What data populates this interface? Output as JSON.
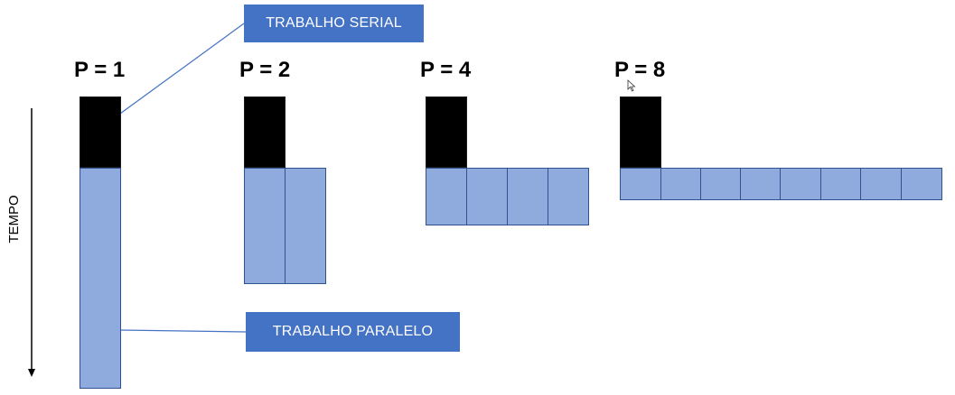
{
  "callouts": {
    "serial_label": "TRABALHO SERIAL",
    "parallel_label": "TRABALHO PARALELO"
  },
  "axis": {
    "time_label": "TEMPO"
  },
  "configs": [
    {
      "label": "P = 1",
      "processors": 1
    },
    {
      "label": "P = 2",
      "processors": 2
    },
    {
      "label": "P = 4",
      "processors": 4
    },
    {
      "label": "P = 8",
      "processors": 8
    }
  ],
  "colors": {
    "serial": "#000000",
    "parallel_fill": "#8faadc",
    "parallel_border": "#2f528f",
    "callout_bg": "#4472c4",
    "callout_text": "#ffffff"
  }
}
